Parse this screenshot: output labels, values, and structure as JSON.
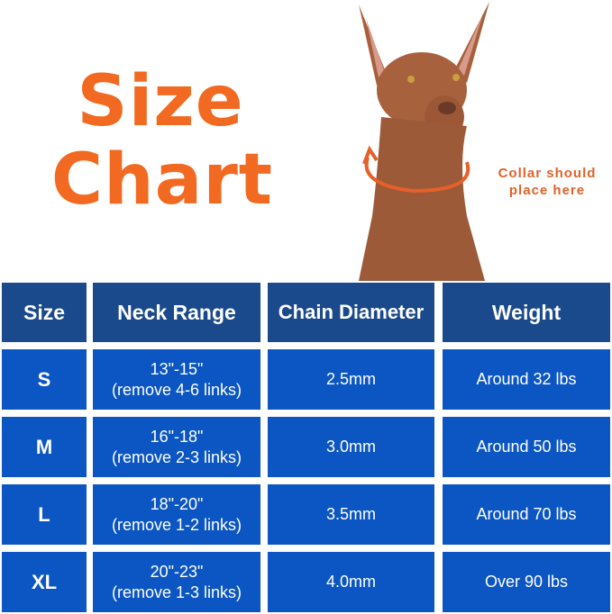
{
  "title": {
    "line1": "Size",
    "line2": "Chart"
  },
  "note": {
    "line1": "Collar should",
    "line2": "place here"
  },
  "colors": {
    "title": "#f26a21",
    "header": "#1b4a8c",
    "body": "#0b56c2"
  },
  "table": {
    "headers": [
      "Size",
      "Neck Range",
      "Chain Diameter",
      "Weight"
    ],
    "rows": [
      {
        "size": "S",
        "range": "13\"-15\"",
        "links": "(remove 4-6 links)",
        "diameter": "2.5mm",
        "weight": "Around 32 lbs"
      },
      {
        "size": "M",
        "range": "16\"-18\"",
        "links": "(remove 2-3 links)",
        "diameter": "3.0mm",
        "weight": "Around 50 lbs"
      },
      {
        "size": "L",
        "range": "18\"-20\"",
        "links": "(remove 1-2 links)",
        "diameter": "3.5mm",
        "weight": "Around 70 lbs"
      },
      {
        "size": "XL",
        "range": "20\"-23\"",
        "links": "(remove 1-3 links)",
        "diameter": "4.0mm",
        "weight": "Over 90 lbs"
      }
    ]
  }
}
